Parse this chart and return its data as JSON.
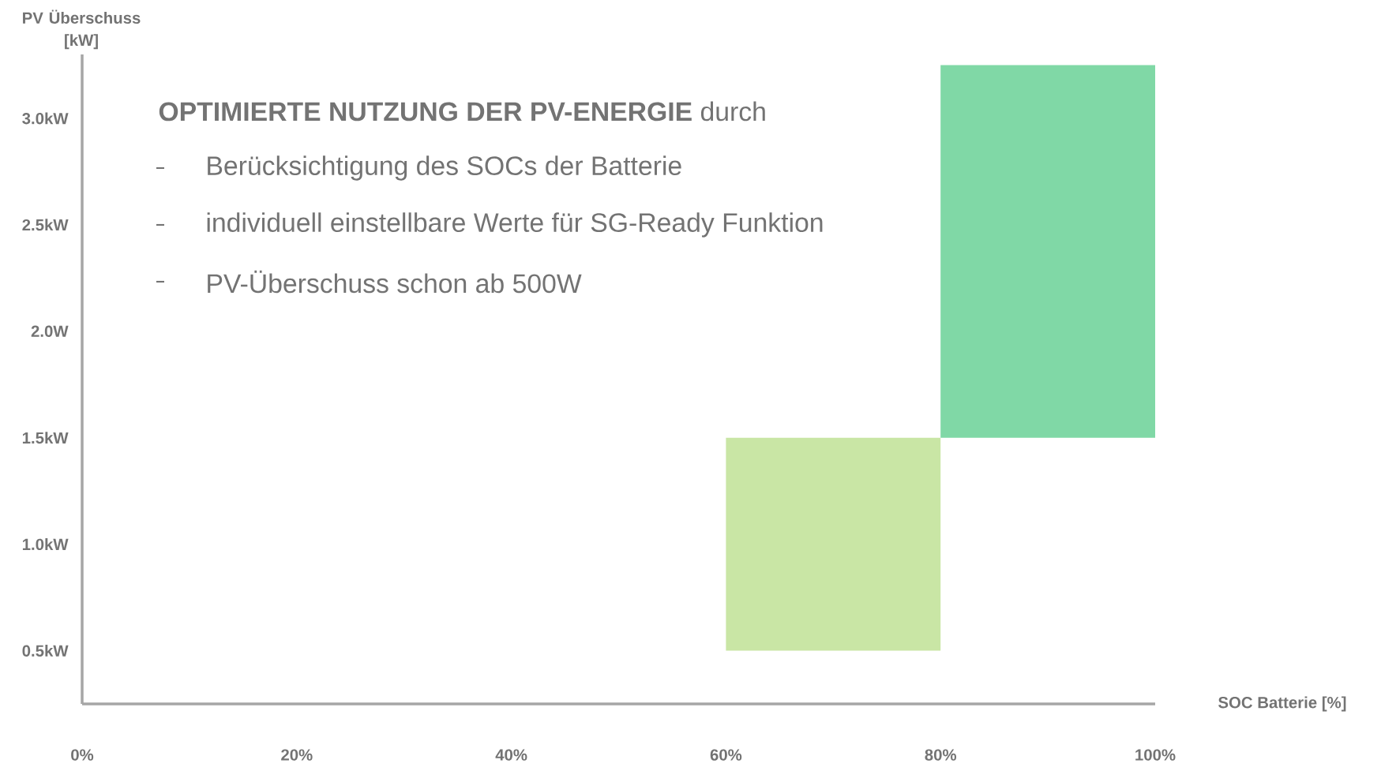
{
  "chart_data": {
    "type": "bar",
    "xlabel": "SOC Batterie [%]",
    "ylabel": "PV Überschuss [kW]",
    "annotations": [
      "**OPTIMIERTE NUTZUNG DER PV-ENERGIE** durch",
      "Berücksichtigung des SOCs der Batterie",
      "individuell einstellbare Werte für SG-Ready Funktion",
      "PV-Überschuss schon ab 500W"
    ],
    "x": [
      70,
      90
    ],
    "base": [
      0.5,
      1.5
    ],
    "values": [
      1.0,
      1.75
    ],
    "colors": [
      "#c9e6a5",
      "#80d8a6"
    ],
    "xlim": [
      0,
      100
    ],
    "ylim": [
      0.25,
      3.3
    ],
    "xticks": [
      {
        "value": 0,
        "label": "0%"
      },
      {
        "value": 20,
        "label": "20%"
      },
      {
        "value": 40,
        "label": "40%"
      },
      {
        "value": 60,
        "label": "60%"
      },
      {
        "value": 80,
        "label": "80%"
      },
      {
        "value": 100,
        "label": "100%"
      }
    ],
    "yticks": [
      {
        "value": 0.5,
        "label": "0.5kW"
      },
      {
        "value": 1.0,
        "label": "1.0kW"
      },
      {
        "value": 1.5,
        "label": "1.5kW"
      },
      {
        "value": 2.0,
        "label": "2.0W"
      },
      {
        "value": 2.5,
        "label": "2.5kW"
      },
      {
        "value": 3.0,
        "label": "3.0kW"
      }
    ]
  }
}
